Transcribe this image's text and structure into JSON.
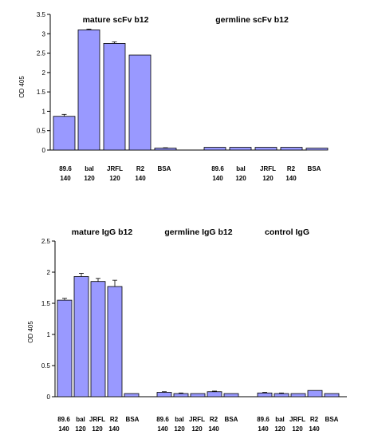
{
  "chart_data": [
    {
      "type": "bar",
      "ylabel": "OD 405",
      "ylim": [
        0,
        3.5
      ],
      "yticks": [
        "0",
        "0.5",
        "1",
        "1.5",
        "2",
        "2.5",
        "3",
        "3.5"
      ],
      "bar_color": "#9999ff",
      "groups": [
        {
          "title": "mature scFv b12",
          "categories": [
            [
              "89.6",
              "140"
            ],
            [
              "bal",
              "120"
            ],
            [
              "JRFL",
              "120"
            ],
            [
              "R2",
              "140"
            ],
            [
              "BSA",
              ""
            ]
          ],
          "values": [
            0.87,
            3.1,
            2.75,
            2.45,
            0.05
          ],
          "errors": [
            0.05,
            0.02,
            0.04,
            0,
            0.01
          ]
        },
        {
          "title": "germline scFv b12",
          "categories": [
            [
              "89.6",
              "140"
            ],
            [
              "bal",
              "120"
            ],
            [
              "JRFL",
              "120"
            ],
            [
              "R2",
              "140"
            ],
            [
              "BSA",
              ""
            ]
          ],
          "values": [
            0.07,
            0.07,
            0.07,
            0.07,
            0.05
          ],
          "errors": [
            0,
            0,
            0,
            0,
            0
          ]
        }
      ]
    },
    {
      "type": "bar",
      "ylabel": "OD 405",
      "ylim": [
        0,
        2.5
      ],
      "yticks": [
        "0",
        "0.5",
        "1",
        "1.5",
        "2",
        "2.5"
      ],
      "bar_color": "#9999ff",
      "groups": [
        {
          "title": "mature IgG b12",
          "categories": [
            [
              "89.6",
              "140"
            ],
            [
              "bal",
              "120"
            ],
            [
              "JRFL",
              "120"
            ],
            [
              "R2",
              "140"
            ],
            [
              "BSA",
              ""
            ]
          ],
          "values": [
            1.55,
            1.93,
            1.85,
            1.77,
            0.05
          ],
          "errors": [
            0.03,
            0.05,
            0.05,
            0.1,
            0
          ]
        },
        {
          "title": "germline IgG b12",
          "categories": [
            [
              "89.6",
              "140"
            ],
            [
              "bal",
              "120"
            ],
            [
              "JRFL",
              "120"
            ],
            [
              "R2",
              "140"
            ],
            [
              "BSA",
              ""
            ]
          ],
          "values": [
            0.07,
            0.05,
            0.05,
            0.08,
            0.05
          ],
          "errors": [
            0.01,
            0.01,
            0,
            0.01,
            0
          ]
        },
        {
          "title": "control IgG",
          "categories": [
            [
              "89.6",
              "140"
            ],
            [
              "bal",
              "120"
            ],
            [
              "JRFL",
              "120"
            ],
            [
              "R2",
              "140"
            ],
            [
              "BSA",
              ""
            ]
          ],
          "values": [
            0.06,
            0.05,
            0.05,
            0.1,
            0.05
          ],
          "errors": [
            0.01,
            0.01,
            0,
            0,
            0
          ]
        }
      ]
    }
  ]
}
